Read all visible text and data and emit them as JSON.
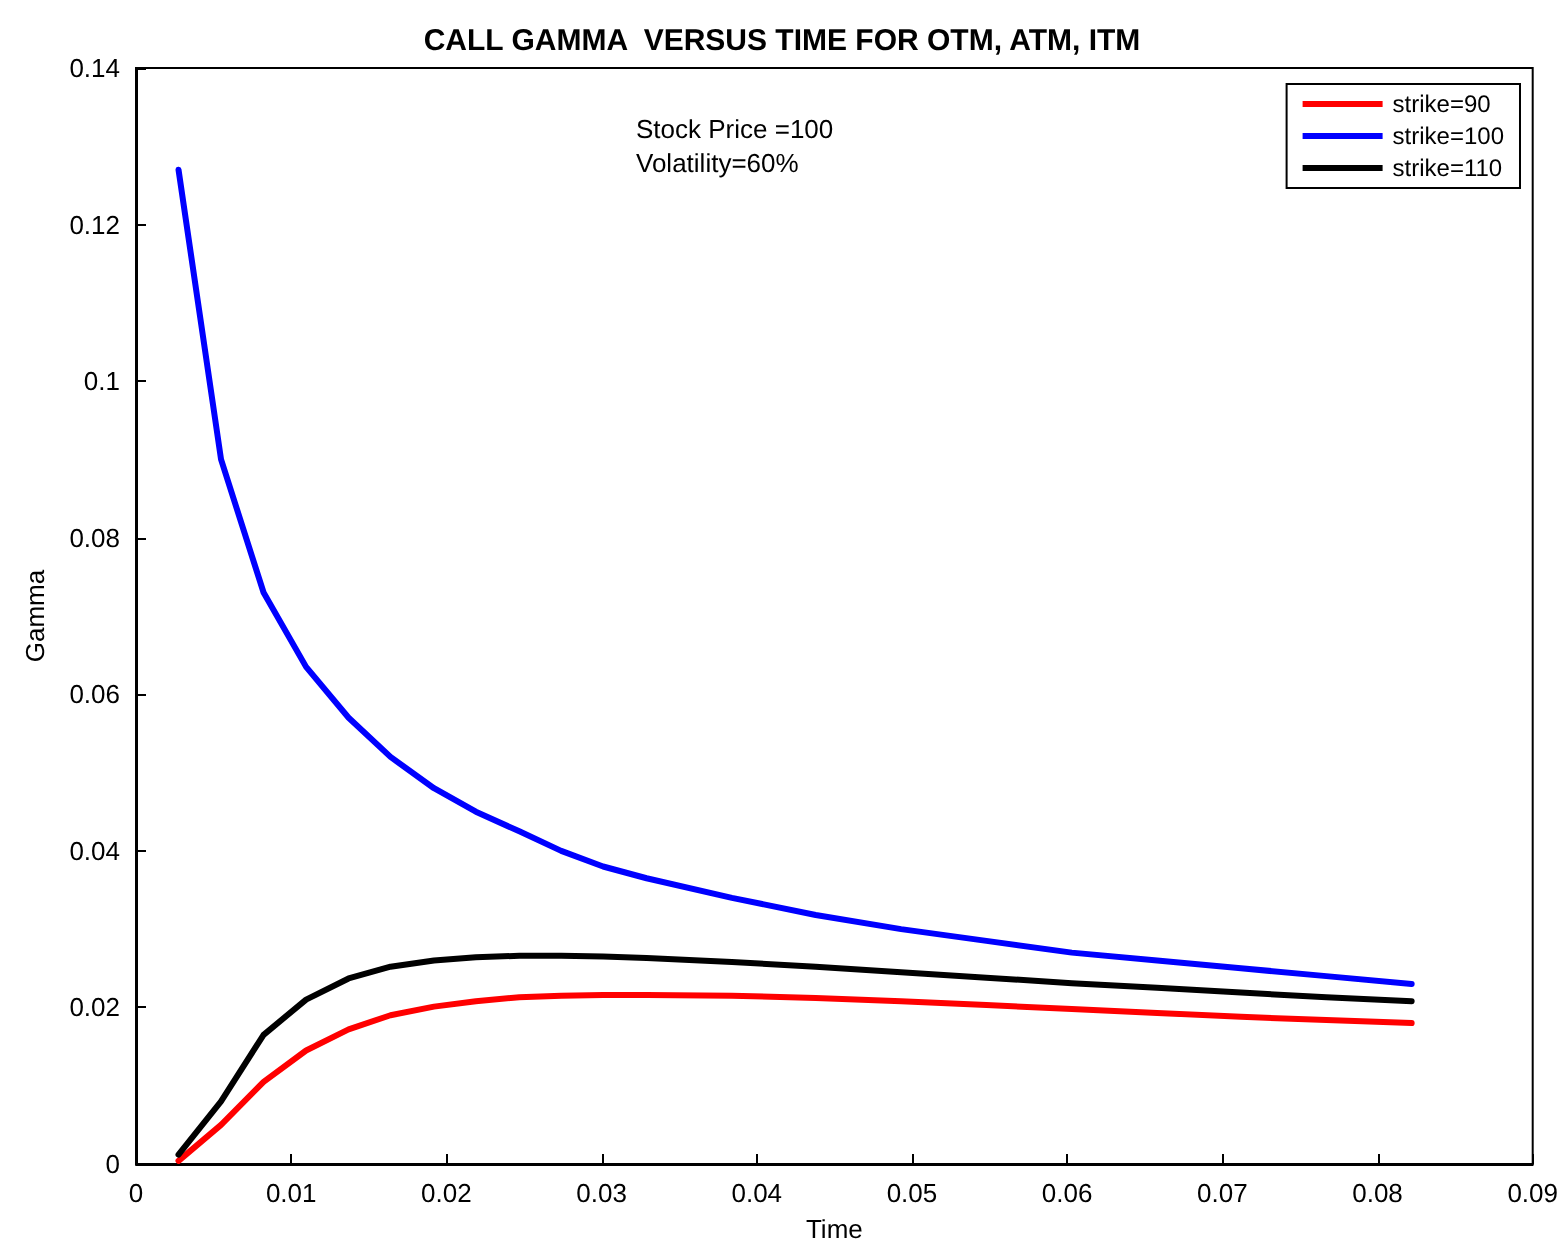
{
  "chart_data": {
    "type": "line",
    "title": "CALL GAMMA  VERSUS TIME FOR OTM, ATM, ITM",
    "xlabel": "Time",
    "ylabel": "Gamma",
    "annotations": [
      "Stock Price =100",
      "Volatility=60%"
    ],
    "x": [
      0.00274,
      0.00548,
      0.00822,
      0.01096,
      0.0137,
      0.0164,
      0.0192,
      0.0219,
      0.0247,
      0.0274,
      0.0301,
      0.0329,
      0.0384,
      0.0438,
      0.0493,
      0.0548,
      0.0603,
      0.0658,
      0.0712,
      0.0767,
      0.0822
    ],
    "series": [
      {
        "name": "strike=90",
        "color": "#ff0000",
        "values": [
          0.0004,
          0.005,
          0.0105,
          0.0145,
          0.0172,
          0.019,
          0.0201,
          0.0208,
          0.0213,
          0.0215,
          0.0216,
          0.0216,
          0.0215,
          0.0212,
          0.0208,
          0.0203,
          0.0198,
          0.0193,
          0.0188,
          0.0184,
          0.018
        ]
      },
      {
        "name": "strike=100",
        "color": "#0000ff",
        "values": [
          0.127,
          0.09,
          0.073,
          0.0635,
          0.057,
          0.052,
          0.048,
          0.045,
          0.0425,
          0.04,
          0.038,
          0.0365,
          0.034,
          0.0318,
          0.03,
          0.0285,
          0.027,
          0.026,
          0.025,
          0.024,
          0.023
        ]
      },
      {
        "name": "strike=110",
        "color": "#000000",
        "values": [
          0.0012,
          0.008,
          0.0165,
          0.021,
          0.0237,
          0.0252,
          0.026,
          0.0264,
          0.0266,
          0.0266,
          0.0265,
          0.0263,
          0.0258,
          0.0252,
          0.0245,
          0.0238,
          0.0231,
          0.0225,
          0.0219,
          0.0213,
          0.0208
        ]
      }
    ],
    "xlim": [
      0,
      0.09
    ],
    "xticks": [
      0,
      0.01,
      0.02,
      0.03,
      0.04,
      0.05,
      0.06,
      0.07,
      0.08,
      0.09
    ],
    "ylim": [
      0,
      0.14
    ],
    "yticks": [
      0,
      0.02,
      0.04,
      0.06,
      0.08,
      0.1,
      0.12,
      0.14
    ],
    "grid": false,
    "legend": "top right",
    "marker": "none",
    "line_style": "solid"
  }
}
